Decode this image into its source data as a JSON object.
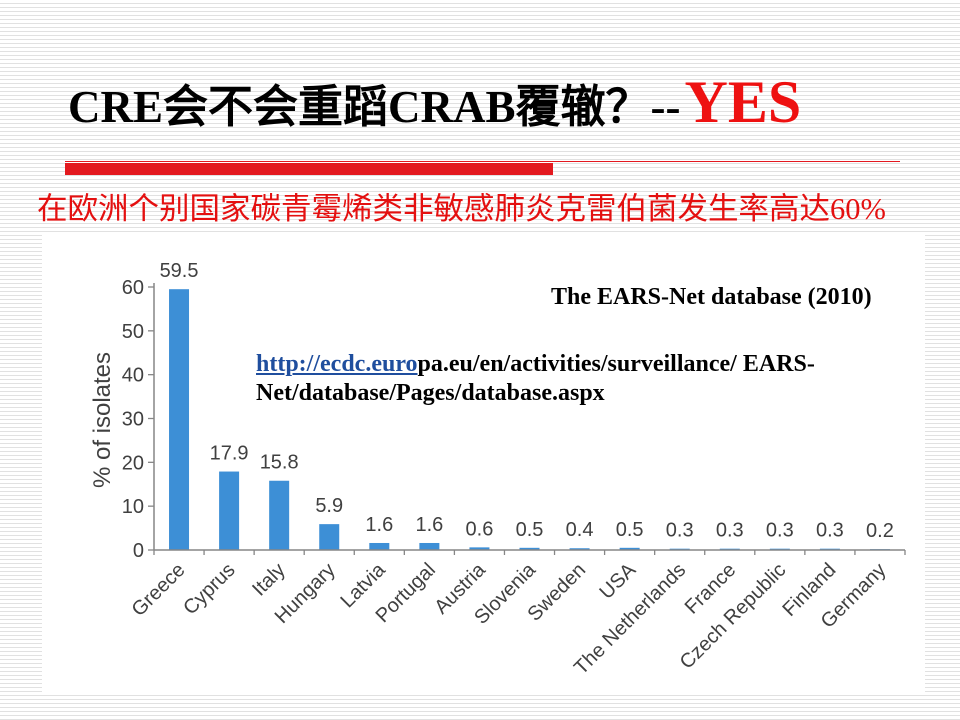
{
  "slide": {
    "title": {
      "text": "CRE会不会重蹈CRAB覆辙？--",
      "emphasis": "YES"
    },
    "subtitle": "在欧洲个别国家碳青霉烯类非敏感肺炎克雷伯菌发生率高达60%"
  },
  "colors": {
    "title_emphasis": "#ee1111",
    "subtitle": "#e41010",
    "title_rule": "#e3191f",
    "bars": "#3d8fd6",
    "link": "#1f4e9e",
    "axis_text": "#404040",
    "axis_line": "#868686"
  },
  "chart_data": {
    "type": "bar",
    "title": "The EARS-Net database (2010)",
    "source_link": {
      "linked": "http://ecdc.euro",
      "line1_rest": "pa.eu/en/activities/surveillance/ EARS-",
      "line2": "Net/database/Pages/database.aspx"
    },
    "categories": [
      "Greece",
      "Cyprus",
      "Italy",
      "Hungary",
      "Latvia",
      "Portugal",
      "Austria",
      "Slovenia",
      "Sweden",
      "USA",
      "The Netherlands",
      "France",
      "Czech Republic",
      "Finland",
      "Germany"
    ],
    "values": [
      59.5,
      17.9,
      15.8,
      5.9,
      1.6,
      1.6,
      0.6,
      0.5,
      0.4,
      0.5,
      0.3,
      0.3,
      0.3,
      0.3,
      0.2
    ],
    "ylabel": "% of isolates",
    "yticks": [
      0,
      10,
      20,
      30,
      40,
      50,
      60
    ],
    "ylim": [
      0,
      60
    ],
    "grid": false,
    "legend": "none"
  }
}
